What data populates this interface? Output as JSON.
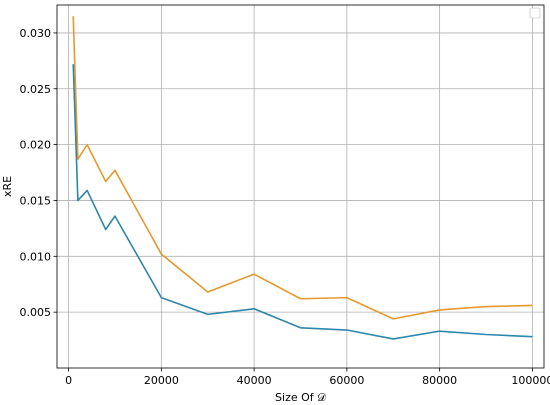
{
  "chart_data": {
    "type": "line",
    "title": "",
    "xlabel": "Size Of 𝒟",
    "ylabel": "xRE",
    "xlim": [
      -2500,
      102500
    ],
    "ylim": [
      0.0,
      0.0325
    ],
    "grid": true,
    "legend": {
      "placement": "top-right",
      "entries": []
    },
    "x_ticks": [
      0,
      20000,
      40000,
      60000,
      80000,
      100000
    ],
    "x_tick_labels": [
      "0",
      "20000",
      "40000",
      "60000",
      "80000",
      "100000"
    ],
    "y_ticks": [
      0.005,
      0.01,
      0.015,
      0.02,
      0.025,
      0.03
    ],
    "y_tick_labels": [
      "0.005",
      "0.010",
      "0.015",
      "0.020",
      "0.025",
      "0.030"
    ],
    "series": [
      {
        "color": "#e69a2e",
        "x": [
          1000,
          2000,
          4000,
          8000,
          10000,
          20000,
          30000,
          40000,
          50000,
          60000,
          70000,
          80000,
          90000,
          100000
        ],
        "y": [
          0.0315,
          0.0187,
          0.02,
          0.0167,
          0.0177,
          0.0102,
          0.0068,
          0.0084,
          0.0062,
          0.0063,
          0.0044,
          0.0052,
          0.0055,
          0.0056
        ]
      },
      {
        "color": "#2e86ab",
        "x": [
          1000,
          2000,
          4000,
          8000,
          10000,
          20000,
          30000,
          40000,
          50000,
          60000,
          70000,
          80000,
          90000,
          100000
        ],
        "y": [
          0.0272,
          0.015,
          0.0159,
          0.0124,
          0.0136,
          0.0063,
          0.0048,
          0.0053,
          0.0036,
          0.0034,
          0.0026,
          0.0033,
          0.003,
          0.0028
        ]
      }
    ]
  }
}
